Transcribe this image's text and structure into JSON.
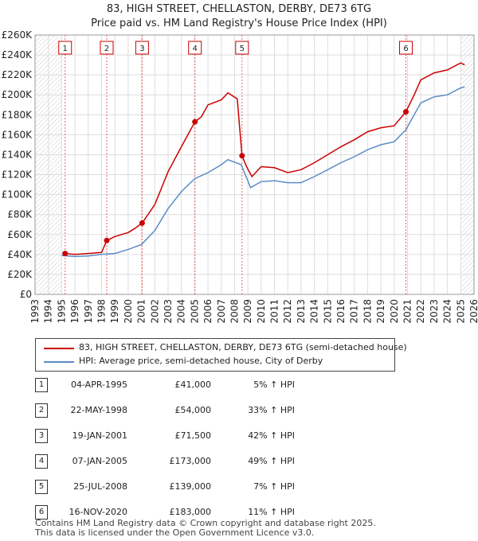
{
  "title_line1": "83, HIGH STREET, CHELLASTON, DERBY, DE73 6TG",
  "title_line2": "Price paid vs. HM Land Registry's House Price Index (HPI)",
  "chart_data": {
    "type": "line",
    "xlim": [
      1993,
      2026
    ],
    "ylim": [
      0,
      260000
    ],
    "y_ticks": [
      0,
      20000,
      40000,
      60000,
      80000,
      100000,
      120000,
      140000,
      160000,
      180000,
      200000,
      220000,
      240000,
      260000
    ],
    "y_tick_labels": [
      "£0",
      "£20K",
      "£40K",
      "£60K",
      "£80K",
      "£100K",
      "£120K",
      "£140K",
      "£160K",
      "£180K",
      "£200K",
      "£220K",
      "£240K",
      "£260K"
    ],
    "x_ticks": [
      1993,
      1994,
      1995,
      1996,
      1997,
      1998,
      1999,
      2000,
      2001,
      2002,
      2003,
      2004,
      2005,
      2006,
      2007,
      2008,
      2009,
      2010,
      2011,
      2012,
      2013,
      2014,
      2015,
      2016,
      2017,
      2018,
      2019,
      2020,
      2021,
      2022,
      2023,
      2024,
      2025,
      2026
    ],
    "x_tick_labels": [
      "1993",
      "1994",
      "1995",
      "1996",
      "1997",
      "1998",
      "1999",
      "2000",
      "2001",
      "2002",
      "2003",
      "2004",
      "2005",
      "2006",
      "2007",
      "2008",
      "2009",
      "2010",
      "2011",
      "2012",
      "2013",
      "2014",
      "2015",
      "2016",
      "2017",
      "2018",
      "2019",
      "2020",
      "2021",
      "2022",
      "2023",
      "2024",
      "2025",
      "2026"
    ],
    "series": [
      {
        "name": "83, HIGH STREET, CHELLASTON, DERBY, DE73 6TG (semi-detached house)",
        "color": "#cc0000",
        "x": [
          1995.26,
          1996,
          1997,
          1998.0,
          1998.39,
          1999,
          2000,
          2000.5,
          2001.05,
          2002,
          2003,
          2004,
          2005.02,
          2005.5,
          2006,
          2007,
          2007.5,
          2008.2,
          2008.56,
          2008.9,
          2009.3,
          2010,
          2011,
          2012,
          2013,
          2014,
          2015,
          2016,
          2017,
          2018,
          2019,
          2020,
          2020.88,
          2021.5,
          2022,
          2023,
          2024,
          2025,
          2025.3
        ],
        "y": [
          41000,
          40000,
          41000,
          42000,
          54000,
          58000,
          62000,
          66000,
          71500,
          90000,
          123000,
          148000,
          173000,
          178000,
          190000,
          195000,
          202000,
          196000,
          139000,
          128000,
          118000,
          128000,
          127000,
          122000,
          125000,
          132000,
          140000,
          148000,
          155000,
          163000,
          167000,
          169000,
          183000,
          200000,
          215000,
          222000,
          225000,
          232000,
          230000
        ]
      },
      {
        "name": "HPI: Average price, semi-detached house, City of Derby",
        "color": "#5b8cc8",
        "x": [
          1995,
          1996,
          1997,
          1998,
          1999,
          2000,
          2001,
          2002,
          2003,
          2004,
          2005,
          2006,
          2007,
          2007.5,
          2008.5,
          2009.2,
          2010,
          2011,
          2012,
          2013,
          2014,
          2015,
          2016,
          2017,
          2018,
          2019,
          2020,
          2020.88,
          2021.5,
          2022,
          2023,
          2024,
          2025,
          2025.3
        ],
        "y": [
          39000,
          38000,
          38500,
          40000,
          41000,
          45000,
          50000,
          64000,
          86000,
          103000,
          116000,
          122000,
          130000,
          135000,
          130000,
          107000,
          113000,
          114000,
          112000,
          112000,
          118000,
          125000,
          132000,
          138000,
          145000,
          150000,
          153000,
          165000,
          180000,
          192000,
          198000,
          200000,
          207000,
          208000
        ]
      }
    ],
    "sales": [
      {
        "marker": "1",
        "date": "04-APR-1995",
        "price": "£41,000",
        "hpi": "5% ↑ HPI",
        "x": 1995.26,
        "y": 41000
      },
      {
        "marker": "2",
        "date": "22-MAY-1998",
        "price": "£54,000",
        "hpi": "33% ↑ HPI",
        "x": 1998.39,
        "y": 54000
      },
      {
        "marker": "3",
        "date": "19-JAN-2001",
        "price": "£71,500",
        "hpi": "42% ↑ HPI",
        "x": 2001.05,
        "y": 71500
      },
      {
        "marker": "4",
        "date": "07-JAN-2005",
        "price": "£173,000",
        "hpi": "49% ↑ HPI",
        "x": 2005.02,
        "y": 173000
      },
      {
        "marker": "5",
        "date": "25-JUL-2008",
        "price": "£139,000",
        "hpi": "7% ↑ HPI",
        "x": 2008.56,
        "y": 139000
      },
      {
        "marker": "6",
        "date": "16-NOV-2020",
        "price": "£183,000",
        "hpi": "11% ↑ HPI",
        "x": 2020.88,
        "y": 183000
      }
    ],
    "grid": true,
    "hatched_before": 1995.0,
    "hatched_after": 2025.0
  },
  "legend": {
    "red_label": "83, HIGH STREET, CHELLASTON, DERBY, DE73 6TG (semi-detached house)",
    "blue_label": "HPI: Average price, semi-detached house, City of Derby"
  },
  "footer_line1": "Contains HM Land Registry data © Crown copyright and database right 2025.",
  "footer_line2": "This data is licensed under the Open Government Licence v3.0."
}
